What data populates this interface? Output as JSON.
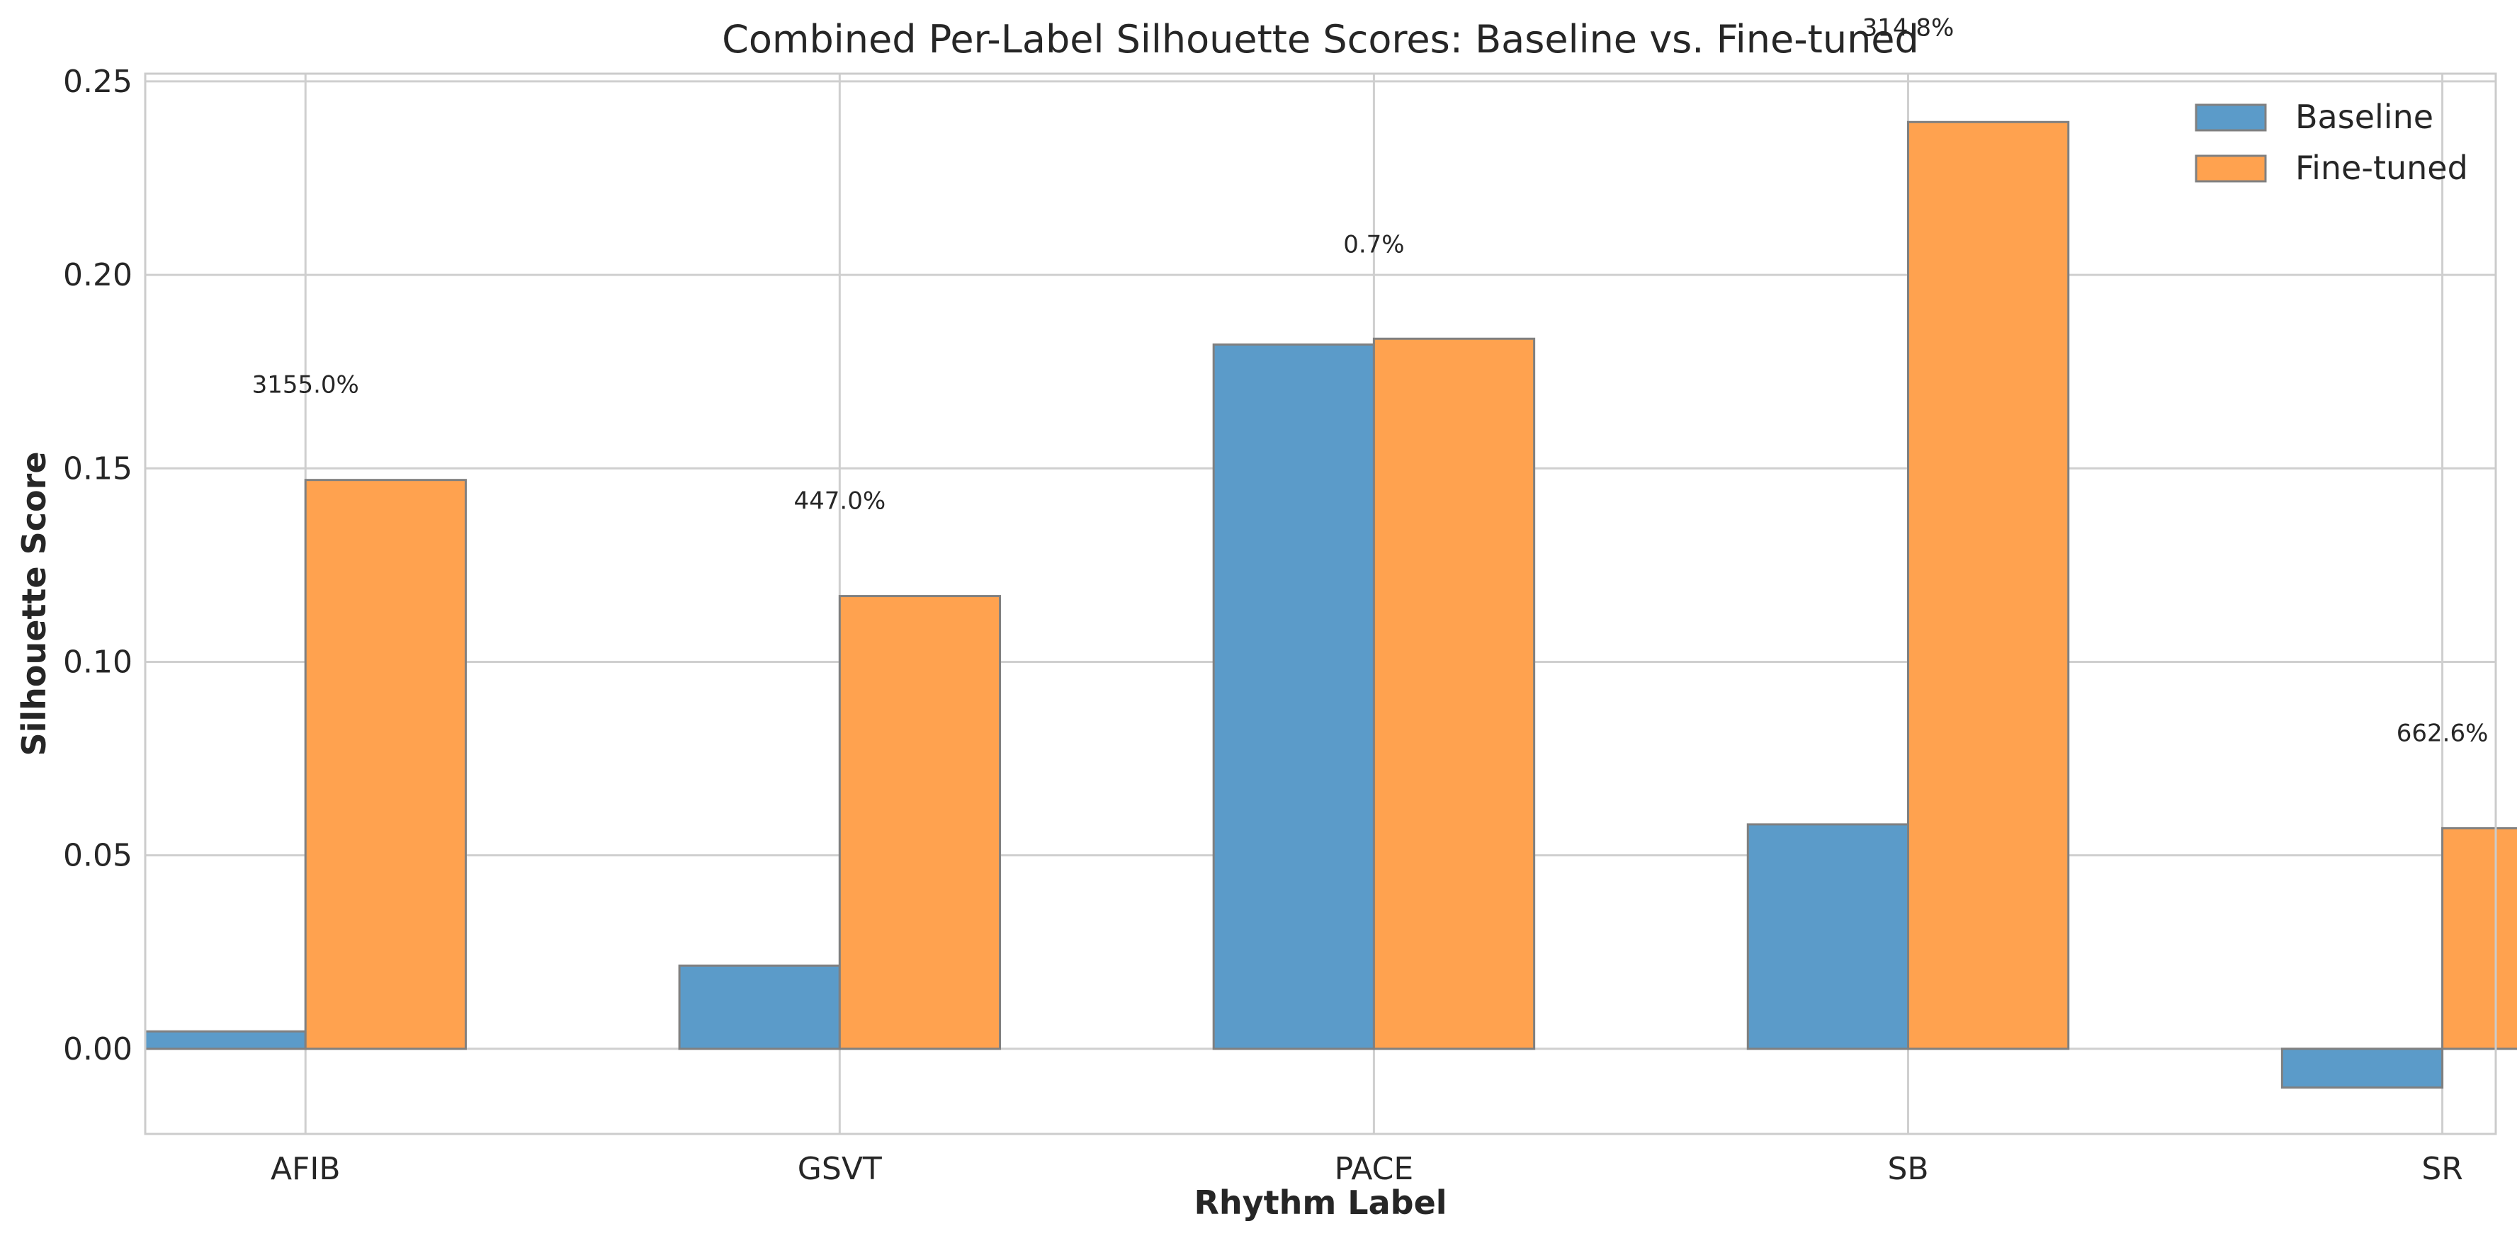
{
  "chart_data": {
    "type": "bar",
    "title": "Combined Per-Label Silhouette Scores: Baseline vs. Fine-tuned",
    "xlabel": "Rhythm Label",
    "ylabel": "Silhouette Score",
    "categories": [
      "AFIB",
      "GSVT",
      "PACE",
      "SB",
      "SR"
    ],
    "series": [
      {
        "name": "Baseline",
        "color": "#5b9bc9",
        "values": [
          0.0045,
          0.0215,
          0.182,
          0.058,
          -0.01
        ]
      },
      {
        "name": "Fine-tuned",
        "color": "#ffa24f",
        "values": [
          0.147,
          0.117,
          0.1835,
          0.2395,
          0.057
        ]
      }
    ],
    "annotations": [
      {
        "category": "AFIB",
        "text": "3155.0%",
        "y": 0.1695
      },
      {
        "category": "GSVT",
        "text": "447.0%",
        "y": 0.1395
      },
      {
        "category": "PACE",
        "text": "0.7%",
        "y": 0.2058
      },
      {
        "category": "SB",
        "text": "314.8%",
        "y": 0.2618
      },
      {
        "category": "SR",
        "text": "662.6%",
        "y": 0.0795
      }
    ],
    "ylim": [
      -0.022,
      0.252
    ],
    "yticks": [
      "0.00",
      "0.05",
      "0.10",
      "0.15",
      "0.20",
      "0.25"
    ],
    "grid": true,
    "legend_position": "top-right"
  }
}
